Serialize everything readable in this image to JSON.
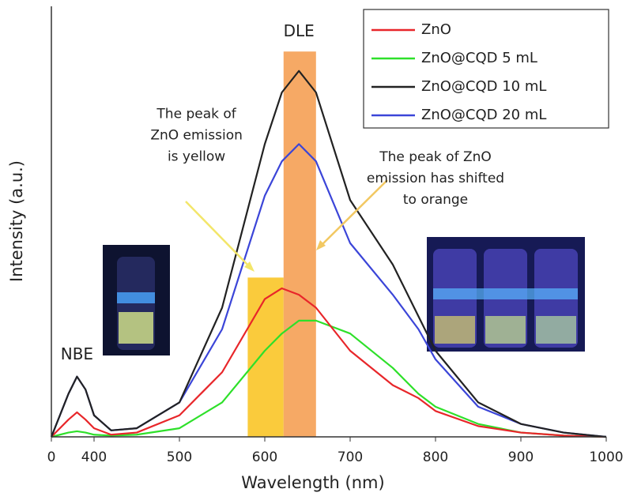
{
  "chart_data": {
    "type": "line",
    "xlabel": "Wavelength (nm)",
    "ylabel": "Intensity (a.u.)",
    "xlim": [
      350,
      1000
    ],
    "xticks": [
      {
        "value": 350,
        "label": "0"
      },
      400,
      500,
      600,
      700,
      800,
      900,
      1000
    ],
    "ylim": [
      0,
      100
    ],
    "x": [
      350,
      370,
      380,
      390,
      400,
      420,
      450,
      500,
      550,
      600,
      620,
      640,
      660,
      700,
      750,
      780,
      800,
      850,
      900,
      950,
      1000
    ],
    "series": [
      {
        "name": "ZnO",
        "color": "#e8262a",
        "values": [
          0,
          4,
          5.7,
          4,
          2,
          0.5,
          1,
          5,
          15,
          32,
          34.5,
          33,
          30,
          20,
          12,
          9,
          6,
          2.5,
          1,
          0.3,
          0
        ]
      },
      {
        "name": "ZnO@CQD 5 mL",
        "color": "#2ee02a",
        "values": [
          0,
          1,
          1.3,
          1,
          0.5,
          0.3,
          0.5,
          2,
          8,
          20,
          24,
          27,
          27,
          24,
          16,
          10,
          7,
          3,
          1,
          0.3,
          0
        ]
      },
      {
        "name": "ZnO@CQD 10 mL",
        "color": "#222222",
        "values": [
          0,
          10,
          14,
          11,
          5,
          1.5,
          2,
          8,
          30,
          68,
          80,
          85,
          80,
          55,
          40,
          28,
          20,
          8,
          3,
          1,
          0
        ]
      },
      {
        "name": "ZnO@CQD 20 mL",
        "color": "#3b45d8",
        "values": [
          0,
          10,
          14,
          11,
          5,
          1.5,
          2,
          8,
          25,
          56,
          64,
          68,
          64,
          45,
          33,
          25,
          18,
          7,
          3,
          1,
          0
        ]
      }
    ],
    "bands": [
      {
        "x": [
          580,
          622
        ],
        "value": 37,
        "color": "#f9c21a"
      },
      {
        "x": [
          622,
          660
        ],
        "value": 89.5,
        "color": "#f49a4a"
      }
    ],
    "annotations": [
      {
        "text": [
          "DLE"
        ],
        "x": 640,
        "y": 94
      },
      {
        "text": [
          "NBE"
        ],
        "x": 380,
        "y": 19
      },
      {
        "text": [
          "The peak of",
          "ZnO emission",
          "is yellow"
        ],
        "x": 520,
        "y": 75
      },
      {
        "text": [
          "The peak of ZnO",
          "emission has shifted",
          "to orange"
        ],
        "x": 800,
        "y": 65
      }
    ]
  }
}
